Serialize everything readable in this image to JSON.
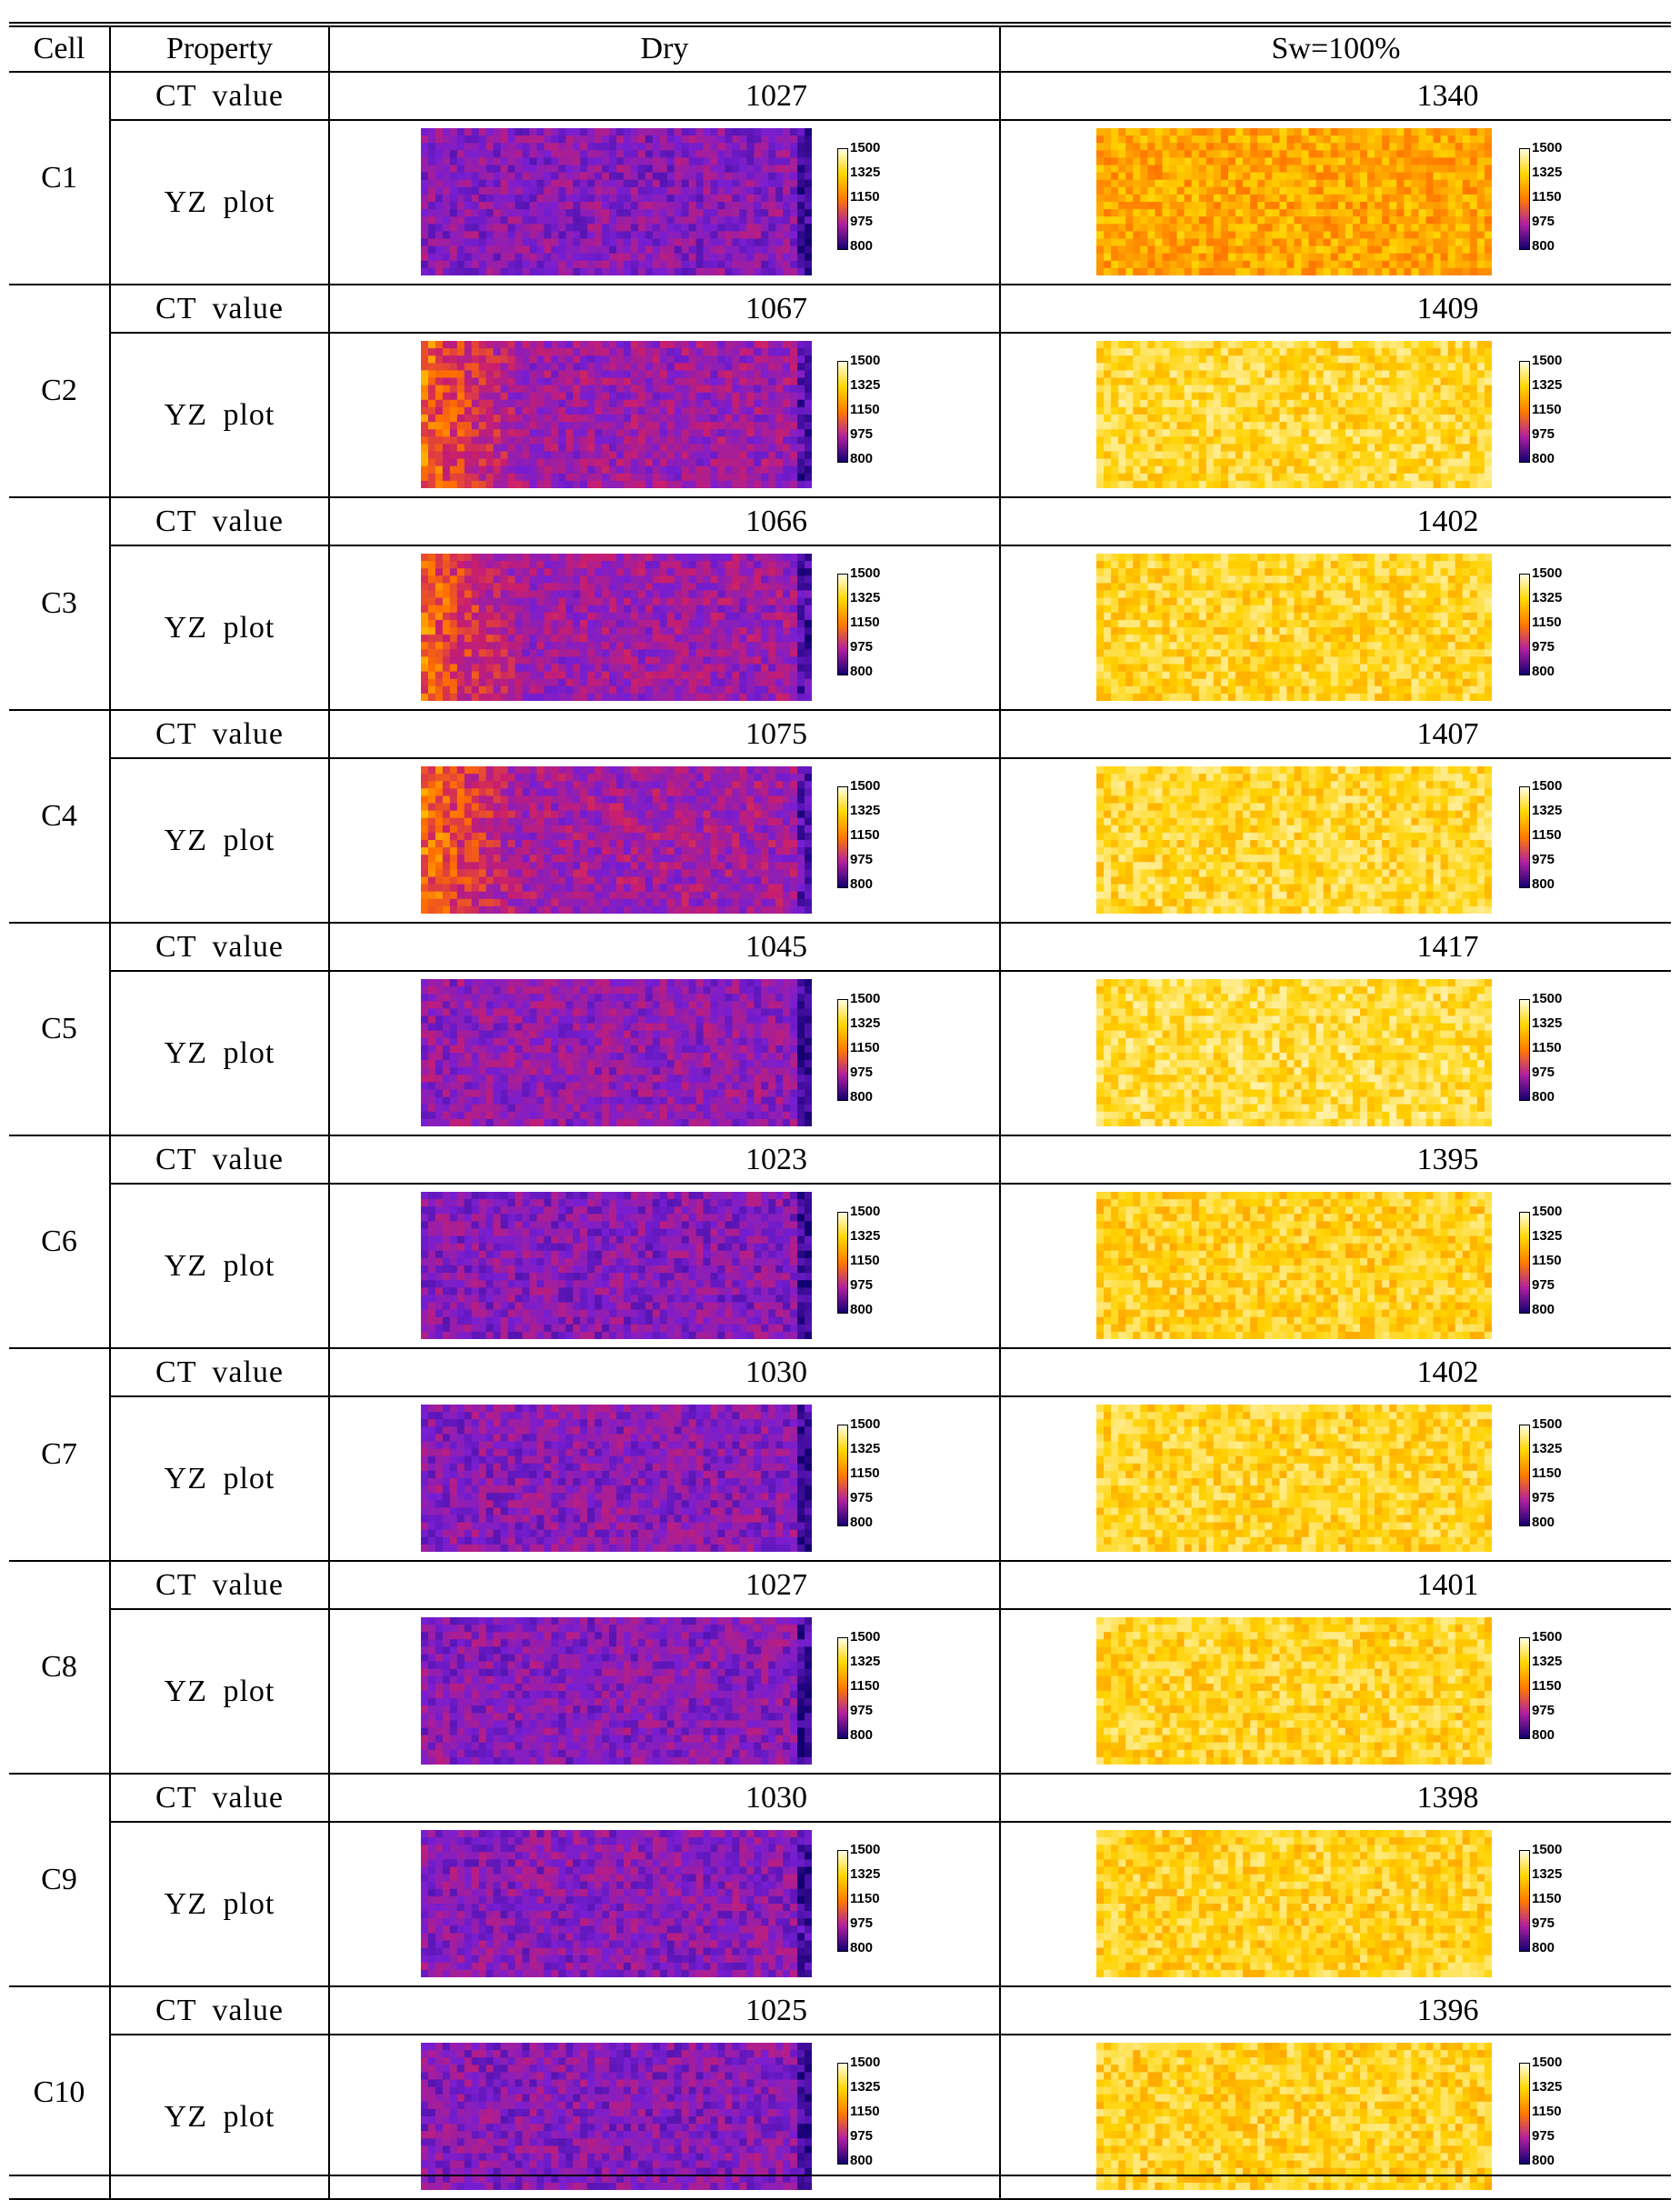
{
  "headers": {
    "cell": "Cell",
    "property": "Property",
    "dry": "Dry",
    "wet": "Sw=100%"
  },
  "property_labels": {
    "ct": "CT  value",
    "yz": "YZ  plot"
  },
  "colorbar": {
    "ticks": [
      "1500",
      "1325",
      "1150",
      "975",
      "800"
    ],
    "range": [
      800,
      1500
    ]
  },
  "rows": [
    {
      "cell": "C1",
      "dry": "1027",
      "wet": "1340"
    },
    {
      "cell": "C2",
      "dry": "1067",
      "wet": "1409"
    },
    {
      "cell": "C3",
      "dry": "1066",
      "wet": "1402"
    },
    {
      "cell": "C4",
      "dry": "1075",
      "wet": "1407"
    },
    {
      "cell": "C5",
      "dry": "1045",
      "wet": "1417"
    },
    {
      "cell": "C6",
      "dry": "1023",
      "wet": "1395"
    },
    {
      "cell": "C7",
      "dry": "1030",
      "wet": "1402"
    },
    {
      "cell": "C8",
      "dry": "1027",
      "wet": "1401"
    },
    {
      "cell": "C9",
      "dry": "1030",
      "wet": "1398"
    },
    {
      "cell": "C10",
      "dry": "1025",
      "wet": "1396"
    }
  ]
}
